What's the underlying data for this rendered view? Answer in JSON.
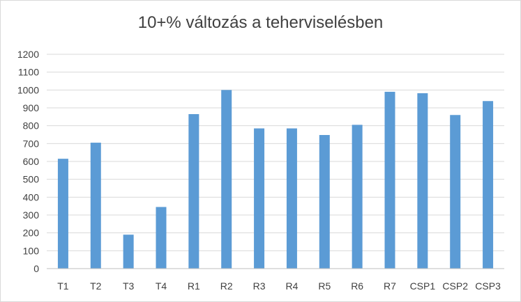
{
  "chart_data": {
    "type": "bar",
    "title": "10+% változás a teherviselésben",
    "xlabel": "",
    "ylabel": "",
    "categories": [
      "T1",
      "T2",
      "T3",
      "T4",
      "R1",
      "R2",
      "R3",
      "R4",
      "R5",
      "R6",
      "R7",
      "CSP1",
      "CSP2",
      "CSP3"
    ],
    "values": [
      615,
      705,
      190,
      345,
      865,
      1000,
      785,
      785,
      748,
      805,
      990,
      982,
      860,
      938
    ],
    "ylim": [
      0,
      1200
    ],
    "yticks": [
      0,
      100,
      200,
      300,
      400,
      500,
      600,
      700,
      800,
      900,
      1000,
      1100,
      1200
    ],
    "grid": true,
    "legend": "none",
    "colors": {
      "bar": "#5b9bd5",
      "grid": "#d9d9d9",
      "axis": "#bfbfbf",
      "text": "#404040"
    }
  }
}
